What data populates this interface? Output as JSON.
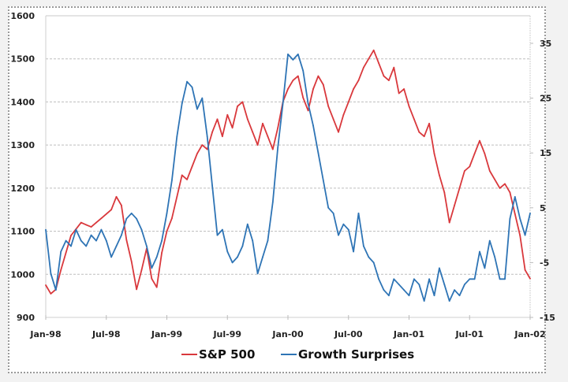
{
  "chart_data": {
    "type": "line",
    "title": "",
    "xlabel": "",
    "ylabel_left": "",
    "ylabel_right": "",
    "x_range": [
      "1998-01",
      "2002-01"
    ],
    "x_tick_labels": [
      "Jan-98",
      "Jul-98",
      "Jan-99",
      "Jul-99",
      "Jan-00",
      "Jul-00",
      "Jan-01",
      "Jul-01",
      "Jan-02"
    ],
    "y_left": {
      "min": 900,
      "max": 1600,
      "step": 100,
      "tick_labels": [
        "900",
        "1000",
        "1100",
        "1200",
        "1300",
        "1400",
        "1500",
        "1600"
      ]
    },
    "y_right": {
      "min": -15,
      "max": 35,
      "step": 10,
      "tick_labels": [
        "-15",
        "-5",
        "5",
        "15",
        "25",
        "35"
      ]
    },
    "grid": "horizontal dashed at left-axis ticks",
    "legend": {
      "position": "bottom-center",
      "entries": [
        {
          "label": "S&P 500",
          "color": "#d9383c",
          "axis": "left"
        },
        {
          "label": "Growth Surprises",
          "color": "#2e74b5",
          "axis": "right"
        }
      ]
    },
    "x_months": [
      0,
      0.5,
      1,
      1.5,
      2,
      2.5,
      3,
      3.5,
      4,
      4.5,
      5,
      5.5,
      6,
      6.5,
      7,
      7.5,
      8,
      8.5,
      9,
      9.5,
      10,
      10.5,
      11,
      11.5,
      12,
      12.5,
      13,
      13.5,
      14,
      14.5,
      15,
      15.5,
      16,
      16.5,
      17,
      17.5,
      18,
      18.5,
      19,
      19.5,
      20,
      20.5,
      21,
      21.5,
      22,
      22.5,
      23,
      23.5,
      24,
      24.5,
      25,
      25.5,
      26,
      26.5,
      27,
      27.5,
      28,
      28.5,
      29,
      29.5,
      30,
      30.5,
      31,
      31.5,
      32,
      32.5,
      33,
      33.5,
      34,
      34.5,
      35,
      35.5,
      36,
      36.5,
      37,
      37.5,
      38,
      38.5,
      39,
      39.5,
      40,
      40.5,
      41,
      41.5,
      42,
      42.5,
      43,
      43.5,
      44,
      44.5,
      45,
      45.5,
      46,
      46.5,
      47,
      47.5,
      48
    ],
    "series": [
      {
        "name": "S&P 500",
        "axis": "left",
        "values": [
          975,
          955,
          965,
          1010,
          1050,
          1090,
          1105,
          1120,
          1115,
          1110,
          1120,
          1130,
          1140,
          1150,
          1180,
          1160,
          1080,
          1030,
          965,
          1010,
          1060,
          990,
          970,
          1050,
          1100,
          1130,
          1180,
          1230,
          1220,
          1250,
          1280,
          1300,
          1290,
          1330,
          1360,
          1320,
          1370,
          1340,
          1390,
          1400,
          1360,
          1330,
          1300,
          1350,
          1320,
          1290,
          1340,
          1400,
          1430,
          1450,
          1460,
          1410,
          1380,
          1430,
          1460,
          1440,
          1390,
          1360,
          1330,
          1370,
          1400,
          1430,
          1450,
          1480,
          1500,
          1520,
          1490,
          1460,
          1450,
          1480,
          1420,
          1430,
          1390,
          1360,
          1330,
          1320,
          1350,
          1280,
          1230,
          1190,
          1120,
          1160,
          1200,
          1240,
          1250,
          1280,
          1310,
          1280,
          1240,
          1220,
          1200,
          1210,
          1190,
          1140,
          1090,
          1010,
          990
        ]
      },
      {
        "name": "Growth Surprises",
        "axis": "right",
        "values": [
          1,
          -7,
          -10,
          -3,
          -1,
          -2,
          1,
          -1,
          -2,
          0,
          -1,
          1,
          -1,
          -4,
          -2,
          0,
          3,
          4,
          3,
          1,
          -2,
          -6,
          -4,
          -1,
          4,
          10,
          18,
          24,
          28,
          27,
          23,
          25,
          18,
          9,
          0,
          1,
          -3,
          -5,
          -4,
          -2,
          2,
          -1,
          -7,
          -4,
          -1,
          6,
          16,
          24,
          33,
          32,
          33,
          30,
          24,
          20,
          15,
          10,
          5,
          4,
          0,
          2,
          1,
          -3,
          4,
          -2,
          -4,
          -5,
          -8,
          -10,
          -11,
          -8,
          -9,
          -10,
          -11,
          -8,
          -9,
          -12,
          -8,
          -11,
          -6,
          -9,
          -12,
          -10,
          -11,
          -9,
          -8,
          -8,
          -3,
          -6,
          -1,
          -4,
          -8,
          -8,
          3,
          7,
          3,
          0,
          4
        ]
      }
    ]
  }
}
